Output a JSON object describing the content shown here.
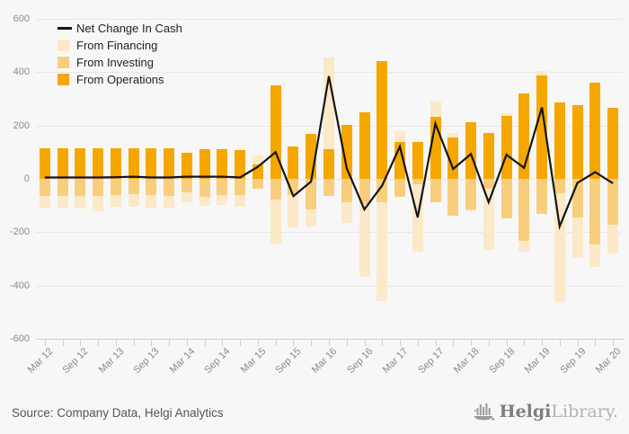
{
  "colors": {
    "operations": "#F5A700",
    "investing": "#F8CE7D",
    "financing": "#FBE9C8",
    "line": "#141414",
    "background": "#F7F7F7",
    "gridline": "#E7E7E7",
    "axis": "#C5CEE8",
    "tick_text": "#8A8A8A",
    "source_text": "#555555"
  },
  "chart_data": {
    "type": "bar",
    "stacked": true,
    "overlay": "line",
    "title": "",
    "xlabel": "",
    "ylabel": "",
    "ylim": [
      -600,
      600
    ],
    "grid": true,
    "legend_position": "top-left",
    "y_ticks": [
      600,
      400,
      200,
      0,
      -200,
      -400,
      -600
    ],
    "categories": [
      "Mar 12",
      "Jun 12",
      "Sep 12",
      "Dec 12",
      "Mar 13",
      "Jun 13",
      "Sep 13",
      "Dec 13",
      "Mar 14",
      "Jun 14",
      "Sep 14",
      "Dec 14",
      "Mar 15",
      "Jun 15",
      "Sep 15",
      "Dec 15",
      "Mar 16",
      "Jun 16",
      "Sep 16",
      "Dec 16",
      "Mar 17",
      "Jun 17",
      "Sep 17",
      "Dec 17",
      "Mar 18",
      "Jun 18",
      "Sep 18",
      "Dec 18",
      "Mar 19",
      "Jun 19",
      "Sep 19",
      "Dec 19",
      "Mar 20"
    ],
    "x_tick_labels_shown": [
      "Mar 12",
      "Sep 12",
      "Mar 13",
      "Sep 13",
      "Mar 14",
      "Sep 14",
      "Mar 15",
      "Sep 15",
      "Mar 16",
      "Sep 16",
      "Mar 17",
      "Sep 17",
      "Mar 18",
      "Sep 18",
      "Mar 19",
      "Sep 19",
      "Mar 20"
    ],
    "x_label_step": 2,
    "series": [
      {
        "name": "From Financing",
        "role": "financing",
        "values": [
          -48,
          -48,
          -48,
          -55,
          -45,
          -45,
          -50,
          -47,
          -37,
          -33,
          -37,
          -43,
          36,
          -169,
          -122,
          -63,
          342,
          -78,
          -275,
          -372,
          39,
          -254,
          56,
          15,
          -6,
          -230,
          10,
          -40,
          17,
          -406,
          -153,
          -85,
          -107
        ]
      },
      {
        "name": "From Investing",
        "role": "investing",
        "values": [
          -64,
          -64,
          -64,
          -65,
          -60,
          -58,
          -62,
          -64,
          -51,
          -69,
          -62,
          -62,
          -37,
          -78,
          -61,
          -116,
          -65,
          -88,
          -94,
          -88,
          -66,
          -20,
          -88,
          -139,
          -115,
          -38,
          -149,
          -234,
          -132,
          -55,
          -145,
          -246,
          -173
        ]
      },
      {
        "name": "From Operations",
        "role": "operations",
        "values": [
          115,
          115,
          115,
          115,
          114,
          113,
          115,
          115,
          98,
          110,
          110,
          107,
          53,
          349,
          120,
          170,
          112,
          203,
          251,
          440,
          138,
          138,
          234,
          156,
          214,
          173,
          235,
          319,
          386,
          288,
          278,
          360,
          265
        ]
      }
    ],
    "line_series": {
      "name": "Net Change In Cash",
      "role": "net",
      "values": [
        5,
        5,
        5,
        5,
        6,
        8,
        5,
        5,
        8,
        8,
        8,
        5,
        45,
        100,
        -65,
        -10,
        385,
        40,
        -115,
        -25,
        121,
        -145,
        207,
        37,
        93,
        -88,
        90,
        41,
        268,
        -179,
        -15,
        25,
        -17
      ]
    }
  },
  "footer": {
    "source_text": "Source: Company Data, Helgi Analytics",
    "logo": {
      "brand": "Helgi",
      "suffix": "Library.",
      "icon": "ship-bar-chart-icon"
    }
  }
}
